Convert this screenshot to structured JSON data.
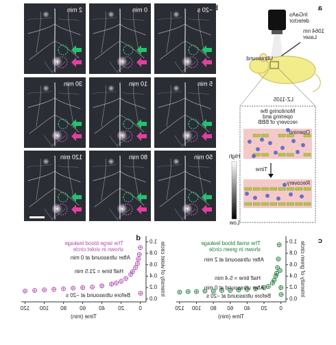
{
  "panel_labels": [
    "a",
    "b",
    "c",
    "d"
  ],
  "schematic": {
    "detector": [
      "InGaAs",
      "detector"
    ],
    "laser": [
      "1064 nm",
      "Laser"
    ],
    "ultrasound": "Ultrasound",
    "model": "LZ-1105",
    "monitoring": [
      "Monitoring the",
      "opening and",
      "recovery of BBB"
    ],
    "opening": "Opening",
    "time": "Time",
    "recovery": "Recovery"
  },
  "colorbar": {
    "high": "High",
    "low": "Low"
  },
  "images": [
    "−20 s",
    "0 min",
    "2 min",
    "5 min",
    "10 min",
    "30 min",
    "50 min",
    "80 min",
    "120 min"
  ],
  "chart_data": [
    {
      "type": "scatter",
      "xlabel": "Time (min)",
      "ylabel": "Intensity of green circle",
      "x": [
        -0.33,
        0,
        1,
        2,
        3,
        4,
        5,
        6,
        8,
        10,
        15,
        20,
        30,
        40,
        50,
        60,
        70,
        80,
        90,
        100,
        110,
        120
      ],
      "series": [
        {
          "color": "#1f7a3a",
          "values": [
            0.08,
            0.2,
            0.5,
            0.95,
            0.7,
            0.55,
            0.45,
            0.4,
            0.33,
            0.28,
            0.22,
            0.2,
            0.18,
            0.17,
            0.16,
            0.15,
            0.15,
            0.14,
            0.14,
            0.13,
            0.13,
            0.12
          ]
        }
      ],
      "xlim": [
        -6,
        124
      ],
      "ylim": [
        -0.05,
        1.1
      ],
      "xticks": [
        0,
        20,
        40,
        60,
        80,
        100,
        120
      ],
      "yticks": [
        {
          "value": 0,
          "label": "0.0"
        },
        0.2,
        0.4,
        0.6,
        0.8,
        {
          "value": 1,
          "label": "1.0"
        }
      ],
      "annotations": [
        "The small blood leakage",
        "shown in green circle",
        "After ultrasound at 2 min",
        "Half time = 5.4 min",
        "After ultrasound at 0 min",
        "Before ultrasound at −20 s"
      ]
    },
    {
      "type": "scatter",
      "xlabel": "Time (min)",
      "ylabel": "Intensity of violet circle",
      "x": [
        -0.33,
        0,
        1,
        2,
        3,
        5,
        8,
        10,
        15,
        20,
        25,
        30,
        40,
        50,
        60,
        70,
        80,
        90,
        100,
        110,
        120
      ],
      "series": [
        {
          "color": "#b04fb0",
          "values": [
            0.1,
            0.9,
            0.78,
            0.7,
            0.62,
            0.55,
            0.48,
            0.43,
            0.36,
            0.31,
            0.28,
            0.26,
            0.23,
            0.21,
            0.2,
            0.19,
            0.18,
            0.17,
            0.16,
            0.15,
            0.14
          ]
        }
      ],
      "xlim": [
        -6,
        124
      ],
      "ylim": [
        -0.05,
        1.1
      ],
      "xticks": [
        0,
        20,
        40,
        60,
        80,
        100,
        120
      ],
      "yticks": [
        {
          "value": 0,
          "label": "0.0"
        },
        0.2,
        0.4,
        0.6,
        0.8,
        {
          "value": 1,
          "label": "1.0"
        }
      ],
      "annotations": [
        "The large blood leakage",
        "shown in violet circle",
        "After ultrasound at 0 min",
        "Half time = 21.5 min",
        "Before ultrasound at −20 s"
      ]
    }
  ]
}
